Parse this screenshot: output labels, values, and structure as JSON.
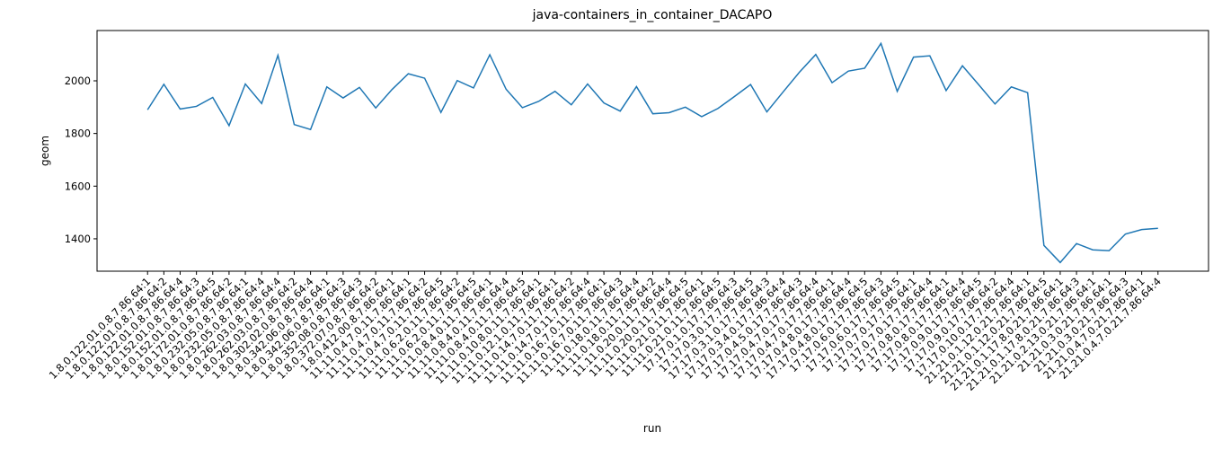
{
  "chart_data": {
    "type": "line",
    "title": "java-containers_in_container_DACAPO",
    "x_label": "run",
    "y_label": "geom",
    "categories": [
      "1.8.0.122.01.0.8.7.86.64:1",
      "1.8.0.122.01.0.8.7.86.64:2",
      "1.8.0.122.01.0.8.7.86.64:4",
      "1.8.0.152.01.0.8.7.86.64:3",
      "1.8.0.152.01.0.8.7.86.64:5",
      "1.8.0.172.01.0.8.7.86.64:2",
      "1.8.0.232.05.0.8.7.86.64:1",
      "1.8.0.232.05.0.8.7.86.64:4",
      "1.8.0.262.03.0.8.7.86.64:4",
      "1.8.0.262.03.0.8.7.86.64:2",
      "1.8.0.302.02.0.8.7.86.64:4",
      "1.8.0.342.06.0.8.7.86.64:1",
      "1.8.0.342.06.0.8.7.86.64:3",
      "1.8.0.352.08.0.8.7.86.64:3",
      "1.8.0.372.07.0.8.7.86.64:2",
      "1.8.0.412.00.8.7.86.64:1",
      "11.11.0.4.7.0.11.7.86.64:1",
      "11.11.0.4.7.0.11.7.86.64:2",
      "11.11.0.4.7.0.11.7.86.64:5",
      "11.11.0.6.2.0.11.7.86.64:2",
      "11.11.0.6.2.0.11.7.86.64:5",
      "11.11.0.8.4.0.11.7.86.64:1",
      "11.11.0.8.4.0.11.7.86.64:4",
      "11.11.0.8.4.0.11.7.86.64:5",
      "11.11.0.10.8.0.11.7.86.64:1",
      "11.11.0.12.1.0.11.7.86.64:1",
      "11.11.0.14.7.0.11.7.86.64:2",
      "11.11.0.14.7.0.11.7.86.64:4",
      "11.11.0.16.7.0.11.7.86.64:1",
      "11.11.0.16.7.0.11.7.86.64:3",
      "11.11.0.18.0.11.7.86.64:4",
      "11.11.0.18.0.11.7.86.64:2",
      "11.11.0.20.0.11.7.86.64:4",
      "11.11.0.20.0.11.7.86.64:5",
      "11.11.0.21.0.11.7.86.64:1",
      "11.11.0.21.0.11.7.86.64:5",
      "17.17.0.1.0.17.7.86.64:3",
      "17.17.0.3.0.17.7.86.64:5",
      "17.17.0.3.1.0.17.7.86.64:3",
      "17.17.0.3.4.0.17.7.86.64:4",
      "17.17.0.4.5.0.17.7.86.64:3",
      "17.17.0.4.7.0.17.7.86.64:4",
      "17.17.0.4.7.0.17.7.86.64:1",
      "17.17.0.4.8.0.17.7.86.64:4",
      "17.17.0.4.8.0.17.7.86.64:5",
      "17.17.0.6.0.17.7.86.64:3",
      "17.17.0.6.0.17.7.86.64:5",
      "17.17.0.7.0.17.7.86.64:1",
      "17.17.0.7.0.17.7.86.64:4",
      "17.17.0.8.0.17.7.86.64:1",
      "17.17.0.8.0.17.7.86.64:4",
      "17.17.0.9.0.17.7.86.64:5",
      "17.17.0.9.0.17.7.86.64:2",
      "17.17.0.10.0.17.7.86.64:4",
      "21.21.0.1.12.0.21.7.86.64:1",
      "21.21.0.1.12.0.21.7.86.64:5",
      "21.21.0.1.17.8.0.21.7.86.64:1",
      "21.21.0.1.17.8.0.21.7.86.64:3",
      "21.21.0.2.13.0.21.7.86.64:1",
      "21.21.0.3.0.21.7.86.64:1",
      "21.21.0.3.0.21.7.86.64:3",
      "21.21.0.4.7.0.21.7.86.64:1",
      "21.21.0.4.7.0.21.7.86.64:4"
    ],
    "values": [
      1890,
      1987,
      1893,
      1903,
      1937,
      1830,
      1988,
      1914,
      2097,
      1834,
      1815,
      1977,
      1935,
      1975,
      1897,
      1967,
      2027,
      2010,
      1880,
      2001,
      1973,
      2099,
      1968,
      1898,
      1922,
      1960,
      1909,
      1988,
      1916,
      1885,
      1978,
      1875,
      1879,
      1900,
      1864,
      1895,
      1940,
      1986,
      1882,
      1958,
      2033,
      2100,
      1993,
      2037,
      2048,
      2142,
      1960,
      2090,
      2095,
      1963,
      2057,
      1985,
      1912,
      1977,
      1955,
      1375,
      1310,
      1382,
      1358,
      1355,
      1418,
      1435,
      1440
    ],
    "color": "#1f77b4",
    "ylim": [
      1277,
      2191
    ],
    "yticks": [
      1400,
      1600,
      1800,
      2000
    ]
  }
}
